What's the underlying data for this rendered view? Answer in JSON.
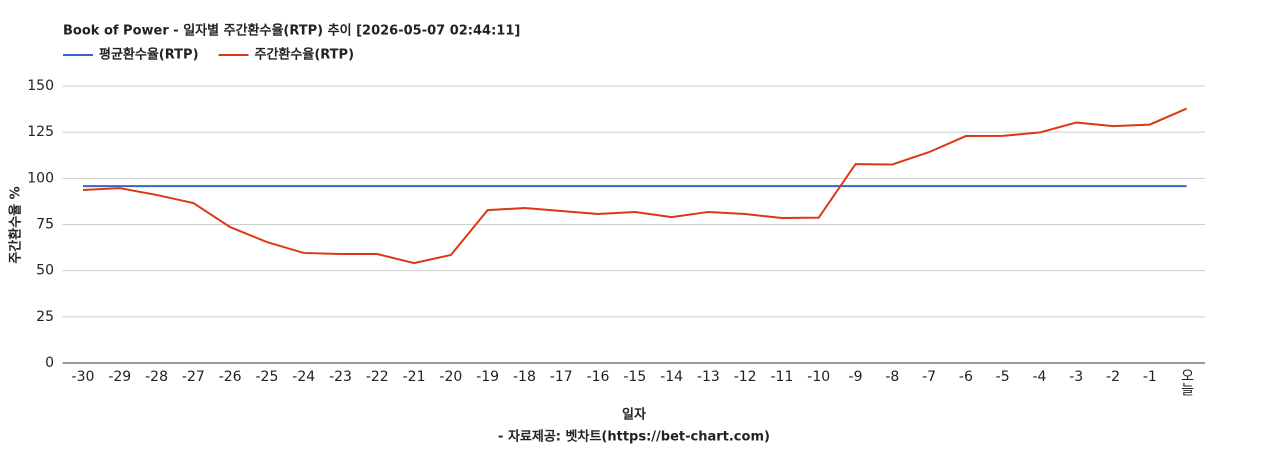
{
  "chart_data": {
    "type": "line",
    "title": "Book of Power - 일자별 주간환수율(RTP) 추이 [2026-05-07 02:44:11]",
    "y_label": "주간환수율 %",
    "x_label": "일자",
    "source": "- 자료제공: 벳차트(https://bet-chart.com)",
    "categories": [
      "-30",
      "-29",
      "-28",
      "-27",
      "-26",
      "-25",
      "-24",
      "-23",
      "-22",
      "-21",
      "-20",
      "-19",
      "-18",
      "-17",
      "-16",
      "-15",
      "-14",
      "-13",
      "-12",
      "-11",
      "-10",
      "-9",
      "-8",
      "-7",
      "-6",
      "-5",
      "-4",
      "-3",
      "-2",
      "-1",
      "오늘"
    ],
    "series": [
      {
        "name": "평균환수율(RTP)",
        "color": "#3366cc",
        "values": [
          95.8,
          95.8,
          95.8,
          95.8,
          95.8,
          95.8,
          95.8,
          95.8,
          95.8,
          95.8,
          95.8,
          95.8,
          95.8,
          95.8,
          95.8,
          95.8,
          95.8,
          95.8,
          95.8,
          95.8,
          95.8,
          95.8,
          95.8,
          95.8,
          95.8,
          95.8,
          95.8,
          95.8,
          95.8,
          95.8,
          95.8
        ]
      },
      {
        "name": "주간환수율(RTP)",
        "color": "#dc3912",
        "values": [
          93.7,
          94.7,
          91,
          86.6,
          73.6,
          65.5,
          59.6,
          59,
          59,
          54.1,
          58.5,
          82.8,
          83.9,
          82.3,
          80.7,
          81.8,
          79,
          81.8,
          80.7,
          78.5,
          78.7,
          107.7,
          107.5,
          114.2,
          122.9,
          123,
          124.8,
          130.2,
          128.3,
          129.1,
          137.8
        ]
      }
    ],
    "ylim": [
      0,
      150
    ],
    "yticks": [
      0,
      25,
      50,
      75,
      100,
      125,
      150
    ],
    "grid": true
  }
}
